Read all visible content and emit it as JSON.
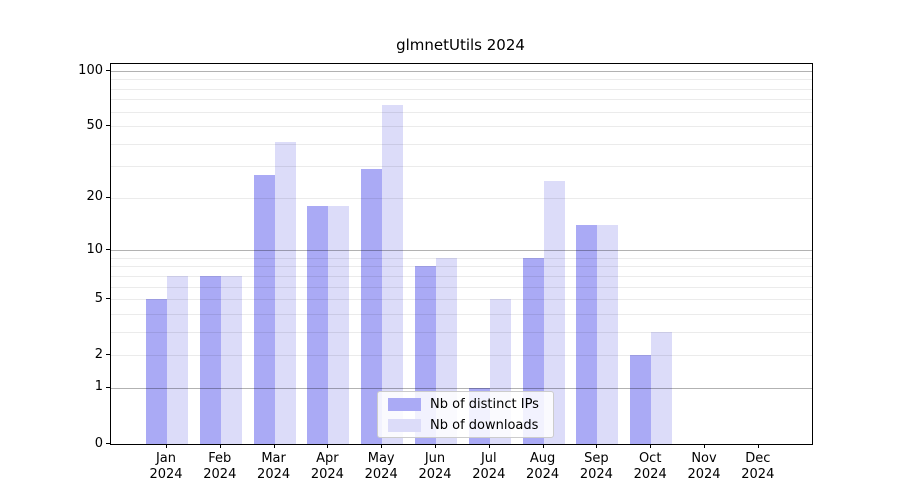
{
  "title": "glmnetUtils 2024",
  "colors": {
    "ips_bar": "#aaaaf5",
    "downloads_bar": "#dcdcf9",
    "grid_minor": "#ebebeb",
    "grid_major": "#b3b3b3",
    "spine": "#000000",
    "background": "#ffffff"
  },
  "legend": {
    "items": [
      {
        "label": "Nb of distinct IPs"
      },
      {
        "label": "Nb of downloads"
      }
    ]
  },
  "chart_data": {
    "type": "bar",
    "title": "glmnetUtils 2024",
    "categories": [
      "Jan 2024",
      "Feb 2024",
      "Mar 2024",
      "Apr 2024",
      "May 2024",
      "Jun 2024",
      "Jul 2024",
      "Aug 2024",
      "Sep 2024",
      "Oct 2024",
      "Nov 2024",
      "Dec 2024"
    ],
    "month_labels": [
      "Jan",
      "Feb",
      "Mar",
      "Apr",
      "May",
      "Jun",
      "Jul",
      "Aug",
      "Sep",
      "Oct",
      "Nov",
      "Dec"
    ],
    "year_label": "2024",
    "series": [
      {
        "name": "Nb of distinct IPs",
        "color": "#aaaaf5",
        "values": [
          5,
          7,
          27,
          18,
          29,
          8,
          1,
          9,
          14,
          2,
          0,
          0
        ]
      },
      {
        "name": "Nb of downloads",
        "color": "#dcdcf9",
        "values": [
          7,
          7,
          41,
          18,
          65,
          9,
          5,
          25,
          14,
          3,
          0,
          0
        ]
      }
    ],
    "xlabel": "",
    "ylabel": "",
    "y_scale": "log10(value+1), 0 at baseline",
    "y_ticks": [
      0,
      1,
      2,
      5,
      10,
      20,
      50,
      100
    ],
    "y_minor_gridlines": [
      2,
      3,
      4,
      5,
      6,
      7,
      8,
      9,
      20,
      30,
      40,
      50,
      60,
      70,
      80,
      90
    ],
    "y_major_gridlines": [
      1,
      10,
      100
    ],
    "ylim": [
      0,
      109
    ],
    "grid": "horizontal only",
    "legend_position": "lower center"
  }
}
